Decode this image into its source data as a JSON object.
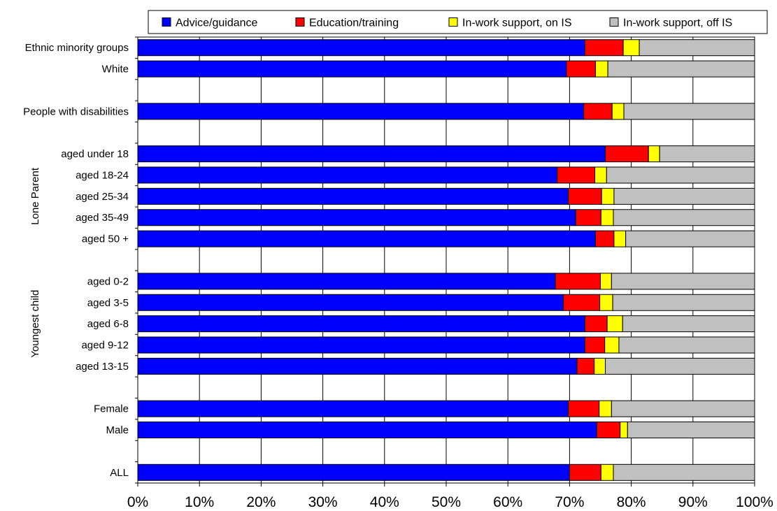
{
  "chart_data": {
    "type": "bar",
    "orientation": "horizontal",
    "stacked": "percent",
    "categories": [
      "Ethnic minority groups",
      "White",
      "",
      "People with disabilities",
      "",
      "aged under 18",
      "aged 18-24",
      "aged 25-34",
      "aged 35-49",
      "aged 50 +",
      "",
      "aged 0-2",
      "aged 3-5",
      "aged 6-8",
      "aged 9-12",
      "aged 13-15",
      "",
      "Female",
      "Male",
      "",
      "ALL"
    ],
    "series": [
      {
        "name": "Advice/guidance",
        "color": "#0000FF",
        "values": [
          72.5,
          69.5,
          null,
          72.3,
          null,
          75.8,
          68.0,
          69.8,
          71.0,
          74.2,
          null,
          67.7,
          69.0,
          72.5,
          72.5,
          71.2,
          null,
          69.8,
          74.4,
          null,
          70.0
        ]
      },
      {
        "name": "Education/training",
        "color": "#FF0000",
        "values": [
          6.2,
          4.7,
          null,
          4.6,
          null,
          7.0,
          6.1,
          5.4,
          4.1,
          3.0,
          null,
          7.3,
          5.9,
          3.6,
          3.2,
          2.8,
          null,
          5.0,
          3.8,
          null,
          5.1
        ]
      },
      {
        "name": "In-work support, on IS",
        "color": "#FFFF00",
        "values": [
          2.6,
          2.0,
          null,
          1.9,
          null,
          1.8,
          1.9,
          2.0,
          2.0,
          1.9,
          null,
          1.8,
          2.1,
          2.5,
          2.3,
          1.8,
          null,
          2.0,
          1.2,
          null,
          2.0
        ]
      },
      {
        "name": "In-work support, off IS",
        "color": "#C0C0C0",
        "values": [
          18.7,
          23.8,
          null,
          21.2,
          null,
          15.4,
          24.0,
          22.8,
          22.9,
          20.9,
          null,
          23.2,
          23.0,
          21.4,
          22.0,
          24.2,
          null,
          23.2,
          20.6,
          null,
          22.9
        ]
      }
    ],
    "xlim": [
      0,
      100
    ],
    "xticks": [
      "0%",
      "10%",
      "20%",
      "30%",
      "40%",
      "50%",
      "60%",
      "70%",
      "80%",
      "90%",
      "100%"
    ],
    "grid": true,
    "legend_position": "top",
    "group_labels": [
      {
        "text": "Lone Parent",
        "from": "aged under 18",
        "to": "aged 50 +"
      },
      {
        "text": "Youngest child",
        "from": "aged 0-2",
        "to": "aged 13-15"
      }
    ]
  }
}
